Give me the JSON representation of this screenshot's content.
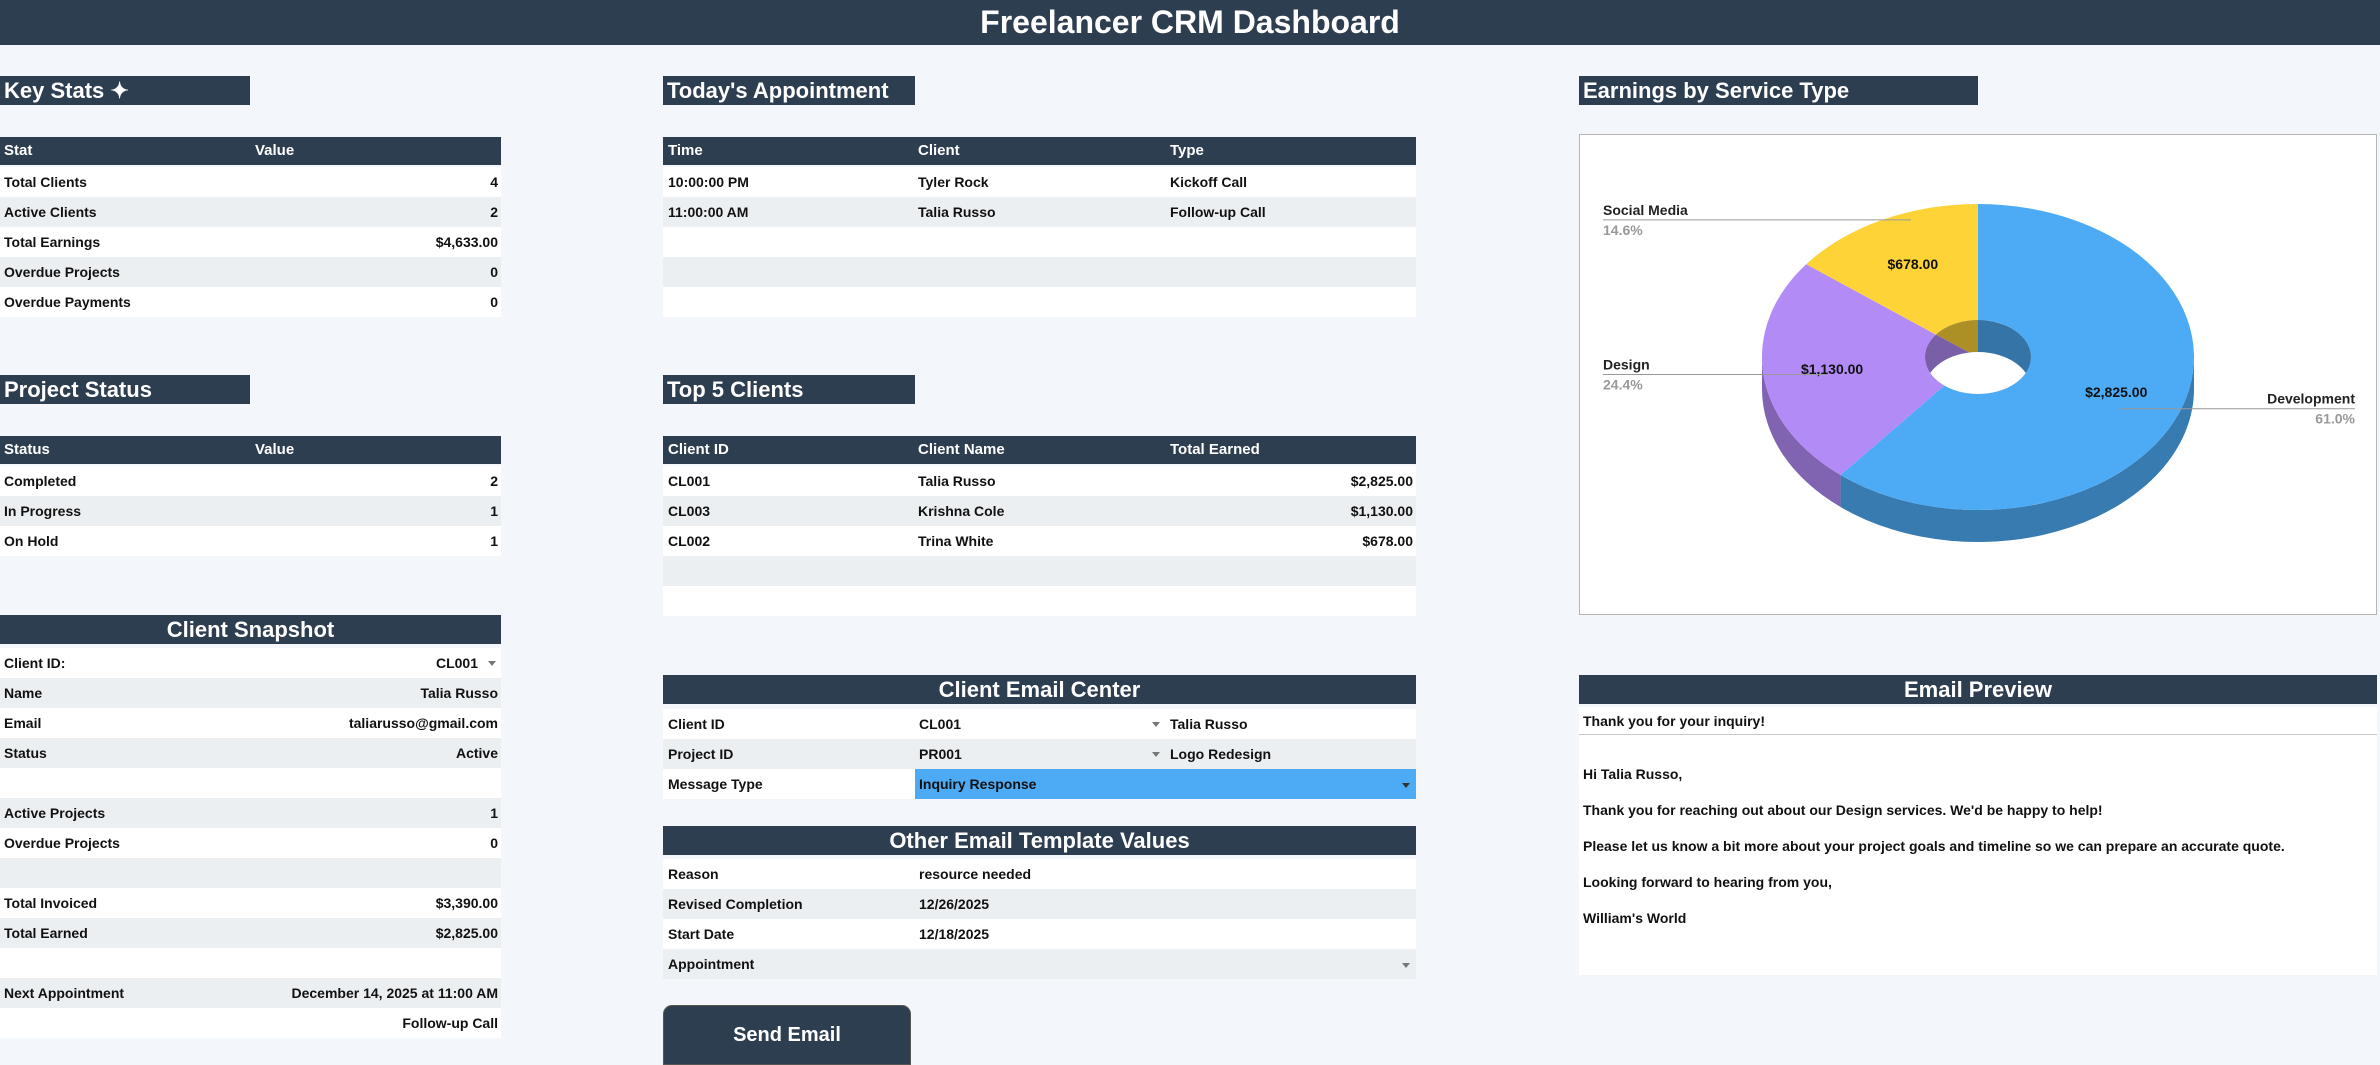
{
  "header": {
    "title": "Freelancer CRM Dashboard"
  },
  "key_stats": {
    "title": "Key Stats ✦",
    "columns": [
      "Stat",
      "Value"
    ],
    "rows": [
      [
        "Total Clients",
        "4"
      ],
      [
        "Active Clients",
        "2"
      ],
      [
        "Total Earnings",
        "$4,633.00"
      ],
      [
        "Overdue Projects",
        "0"
      ],
      [
        "Overdue Payments",
        "0"
      ]
    ]
  },
  "project_status": {
    "title": "Project Status",
    "columns": [
      "Status",
      "Value"
    ],
    "rows": [
      [
        "Completed",
        "2"
      ],
      [
        "In Progress",
        "1"
      ],
      [
        "On Hold",
        "1"
      ]
    ]
  },
  "todays_appointment": {
    "title": "Today's Appointment",
    "columns": [
      "Time",
      "Client",
      "Type"
    ],
    "rows": [
      [
        "10:00:00 PM",
        "Tyler Rock",
        "Kickoff Call"
      ],
      [
        "11:00:00 AM",
        "Talia Russo",
        "Follow-up Call"
      ]
    ]
  },
  "top_clients": {
    "title": "Top 5 Clients",
    "columns": [
      "Client ID",
      "Client Name",
      "Total Earned"
    ],
    "rows": [
      [
        "CL001",
        "Talia Russo",
        "$2,825.00"
      ],
      [
        "CL003",
        "Krishna Cole",
        "$1,130.00"
      ],
      [
        "CL002",
        "Trina White",
        "$678.00"
      ]
    ]
  },
  "client_snapshot": {
    "title": "Client Snapshot",
    "rows": [
      [
        "Client ID:",
        "CL001"
      ],
      [
        "Name",
        "Talia Russo"
      ],
      [
        "Email",
        "taliarusso@gmail.com"
      ],
      [
        "Status",
        "Active"
      ],
      null,
      [
        "Active Projects",
        "1"
      ],
      [
        "Overdue Projects",
        "0"
      ],
      null,
      [
        "Total Invoiced",
        "$3,390.00"
      ],
      [
        "Total Earned",
        "$2,825.00"
      ],
      null,
      [
        "Next Appointment",
        "December 14, 2025 at 11:00 AM"
      ],
      [
        null,
        "Follow-up Call"
      ]
    ]
  },
  "email_center": {
    "title": "Client Email Center",
    "rows": [
      [
        "Client ID",
        "CL001",
        "Talia Russo"
      ],
      [
        "Project ID",
        "PR001",
        "Logo Redesign"
      ],
      [
        "Message Type",
        "Inquiry Response"
      ]
    ]
  },
  "other_template": {
    "title": "Other Email Template Values",
    "rows": [
      [
        "Reason",
        "resource needed"
      ],
      [
        "Revised Completion",
        "12/26/2025"
      ],
      [
        "Start Date",
        "12/18/2025"
      ],
      [
        "Appointment"
      ]
    ]
  },
  "send_button": {
    "label": "Send Email"
  },
  "email_preview": {
    "title": "Email Preview",
    "subject": "Thank you for your inquiry!",
    "body": [
      "Hi Talia Russo,",
      "Thank you for reaching out about our Design services. We'd be happy to help!",
      "Please let us know a bit more about your project goals and timeline so we can prepare an accurate quote.",
      "Looking forward to hearing from you,",
      "William's World"
    ]
  },
  "chart_data": {
    "type": "pie",
    "title": "Earnings by Service Type",
    "categories": [
      "Development",
      "Design",
      "Social Media"
    ],
    "values": [
      2825,
      1130,
      678
    ],
    "value_labels": [
      "$2,825.00",
      "$1,130.00",
      "$678.00"
    ],
    "percent_labels": [
      "61.0%",
      "24.4%",
      "14.6%"
    ],
    "colors": [
      "#4dabf5",
      "#b28bf7",
      "#fdd337"
    ],
    "donut": true,
    "three_d": true
  }
}
